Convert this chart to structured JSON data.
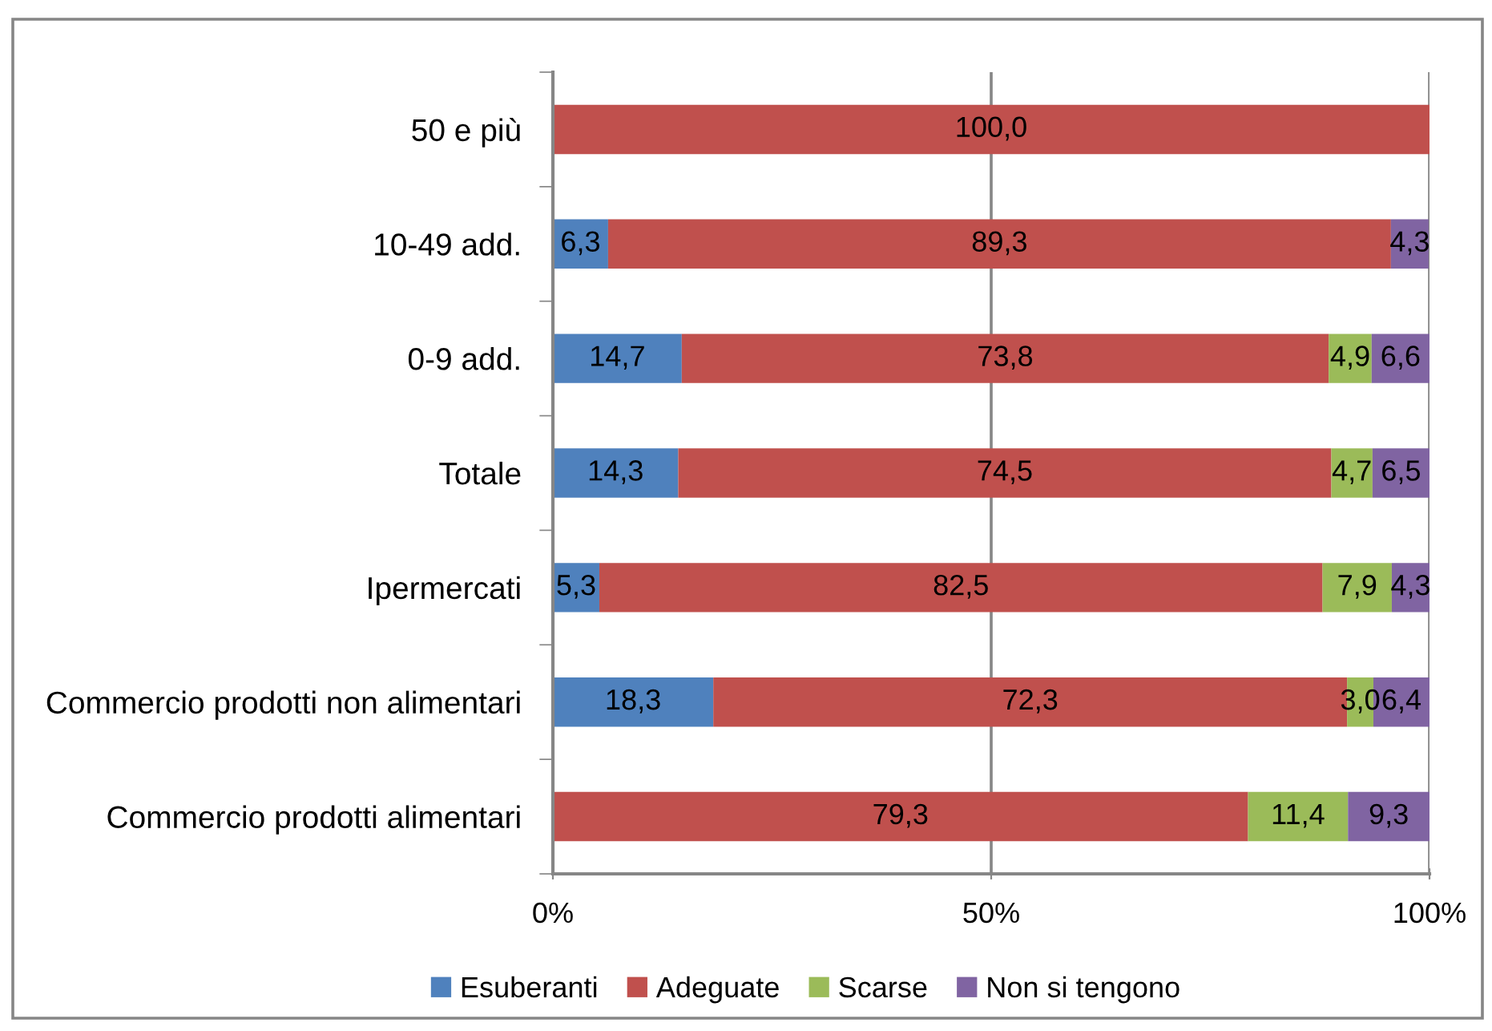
{
  "chart_data": {
    "type": "bar",
    "orientation": "horizontal",
    "stacked": true,
    "categories": [
      "50 e più",
      "10-49 add.",
      "0-9 add.",
      "Totale",
      "Ipermercati",
      "Commercio prodotti non alimentari",
      "Commercio prodotti alimentari"
    ],
    "series": [
      {
        "name": "Esuberanti",
        "color": "#4f81bd",
        "values": [
          null,
          6.3,
          14.7,
          14.3,
          5.3,
          18.3,
          null
        ],
        "value_labels": [
          null,
          "6,3",
          "14,7",
          "14,3",
          "5,3",
          "18,3",
          null
        ]
      },
      {
        "name": "Adeguate",
        "color": "#c0504d",
        "values": [
          100.0,
          89.3,
          73.8,
          74.5,
          82.5,
          72.3,
          79.3
        ],
        "value_labels": [
          "100,0",
          "89,3",
          "73,8",
          "74,5",
          "82,5",
          "72,3",
          "79,3"
        ]
      },
      {
        "name": "Scarse",
        "color": "#9bbb59",
        "values": [
          null,
          null,
          4.9,
          4.7,
          7.9,
          3.0,
          11.4
        ],
        "value_labels": [
          null,
          null,
          "4,9",
          "4,7",
          "7,9",
          "3,0",
          "11,4"
        ]
      },
      {
        "name": "Non si tengono",
        "color": "#8064a2",
        "values": [
          null,
          4.3,
          6.6,
          6.5,
          4.3,
          6.4,
          9.3
        ],
        "value_labels": [
          null,
          "4,3",
          "6,6",
          "6,5",
          "4,3",
          "6,4",
          "9,3"
        ]
      }
    ],
    "xlim": [
      0,
      100
    ],
    "xticks": [
      {
        "value": 0,
        "label": "0%"
      },
      {
        "value": 50,
        "label": "50%"
      },
      {
        "value": 100,
        "label": "100%"
      }
    ],
    "grid": "x",
    "legend": "bottom"
  }
}
